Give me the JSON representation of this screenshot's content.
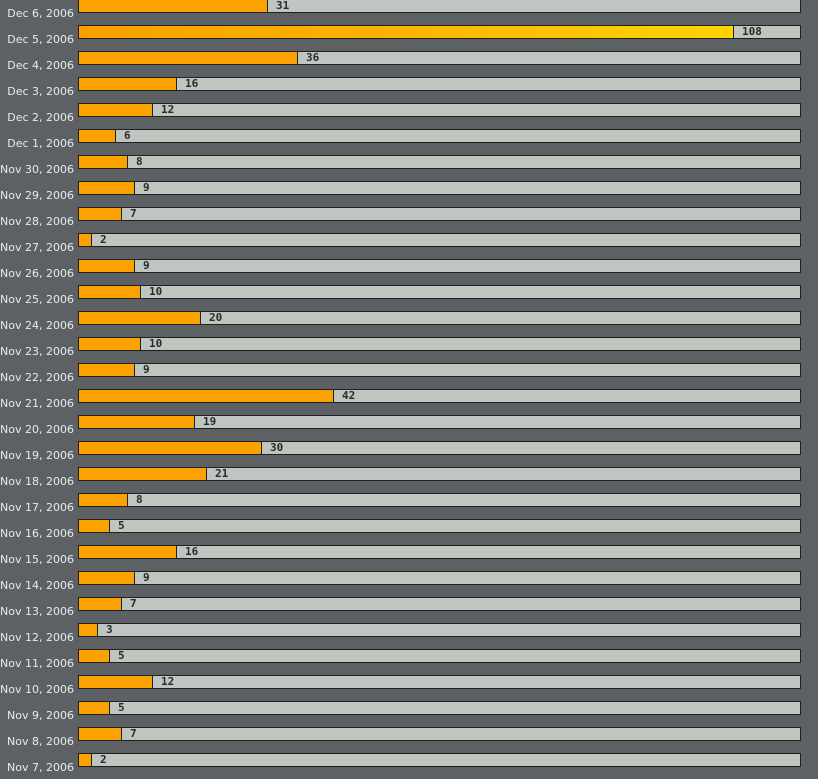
{
  "chart_data": {
    "type": "bar",
    "orientation": "horizontal",
    "title": "",
    "xlabel": "",
    "ylabel": "",
    "xlim": [
      0,
      119
    ],
    "grid": false,
    "categories": [
      "Dec 6, 2006",
      "Dec 5, 2006",
      "Dec 4, 2006",
      "Dec 3, 2006",
      "Dec 2, 2006",
      "Dec 1, 2006",
      "Nov 30, 2006",
      "Nov 29, 2006",
      "Nov 28, 2006",
      "Nov 27, 2006",
      "Nov 26, 2006",
      "Nov 25, 2006",
      "Nov 24, 2006",
      "Nov 23, 2006",
      "Nov 22, 2006",
      "Nov 21, 2006",
      "Nov 20, 2006",
      "Nov 19, 2006",
      "Nov 18, 2006",
      "Nov 17, 2006",
      "Nov 16, 2006",
      "Nov 15, 2006",
      "Nov 14, 2006",
      "Nov 13, 2006",
      "Nov 12, 2006",
      "Nov 11, 2006",
      "Nov 10, 2006",
      "Nov 9, 2006",
      "Nov 8, 2006",
      "Nov 7, 2006"
    ],
    "values": [
      31,
      108,
      36,
      16,
      12,
      6,
      8,
      9,
      7,
      2,
      9,
      10,
      20,
      10,
      9,
      42,
      19,
      30,
      21,
      8,
      5,
      16,
      9,
      7,
      3,
      5,
      12,
      5,
      7,
      2
    ],
    "highlight_index": 1,
    "colors": {
      "bar": "#f9a200",
      "highlight_start": "#f9a000",
      "highlight_end": "#ffd400",
      "track": "#bfc6c0",
      "background": "#5d6163",
      "border": "#1f2020",
      "label_text": "#e6ebee",
      "value_text": "#2a2a2a"
    }
  }
}
